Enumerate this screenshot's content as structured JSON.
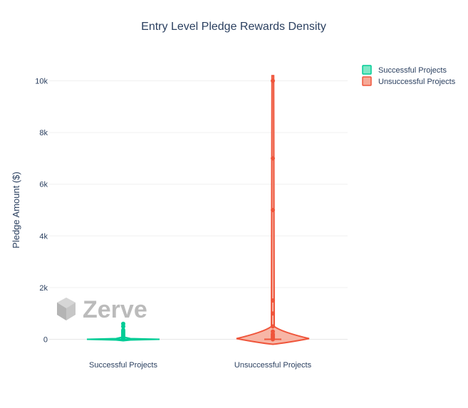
{
  "chart_data": {
    "type": "violin",
    "title": "Entry Level Pledge Rewards Density",
    "ylabel": "Pledge Amount ($)",
    "xlabel": "",
    "categories": [
      "Successful Projects",
      "Unsuccessful Projects"
    ],
    "ylim": [
      -300,
      10400
    ],
    "yticks": [
      0,
      2000,
      4000,
      6000,
      8000,
      10000
    ],
    "ytick_labels": [
      "0",
      "2k",
      "4k",
      "6k",
      "8k",
      "10k"
    ],
    "grid": true,
    "legend": "top-right",
    "series": [
      {
        "name": "Successful Projects",
        "category": "Successful Projects",
        "color": "#00cc96",
        "fill": "#7ee8c6",
        "max": 600,
        "points": [
          0,
          5,
          10,
          20,
          25,
          50,
          100,
          150,
          200,
          250,
          300,
          350,
          500,
          600
        ]
      },
      {
        "name": "Unsuccessful Projects",
        "category": "Unsuccessful Projects",
        "color": "#ef553b",
        "fill": "#f6a997",
        "max": 10000,
        "points": [
          0,
          10,
          25,
          50,
          100,
          150,
          200,
          300,
          500,
          1000,
          1500,
          5000,
          7000,
          10000
        ]
      }
    ]
  },
  "watermark": {
    "text": "Zerve",
    "icon": "zerve-logo-icon"
  }
}
